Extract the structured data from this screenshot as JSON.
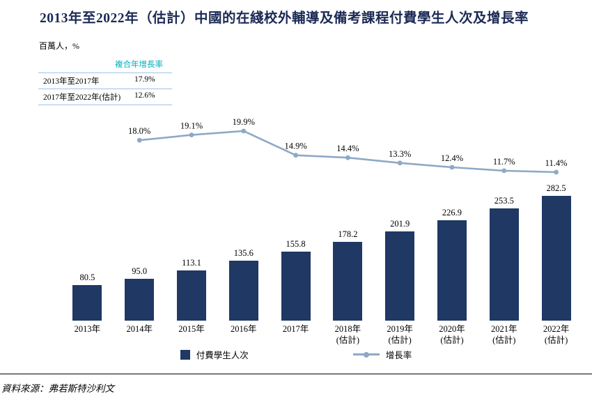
{
  "title": "2013年至2022年（估計）中國的在綫校外輔導及備考課程付費學生人次及增長率",
  "units_label": "百萬人，%",
  "cagr_table": {
    "header": "複合年增長率",
    "rows": [
      {
        "label": "2013年至2017年",
        "value": "17.9%"
      },
      {
        "label": "2017年至2022年(估計)",
        "value": "12.6%"
      }
    ]
  },
  "chart_data": {
    "type": "bar+line",
    "categories": [
      "2013年",
      "2014年",
      "2015年",
      "2016年",
      "2017年",
      "2018年",
      "2019年",
      "2020年",
      "2021年",
      "2022年"
    ],
    "category_sublabels": [
      "",
      "",
      "",
      "",
      "",
      "(估計)",
      "(估計)",
      "(估計)",
      "(估計)",
      "(估計)"
    ],
    "series": [
      {
        "name": "付費學生人次",
        "type": "bar",
        "values": [
          80.5,
          95.0,
          113.1,
          135.6,
          155.8,
          178.2,
          201.9,
          226.9,
          253.5,
          282.5
        ],
        "labels": [
          "80.5",
          "95.0",
          "113.1",
          "135.6",
          "155.8",
          "178.2",
          "201.9",
          "226.9",
          "253.5",
          "282.5"
        ],
        "color": "#1F3864"
      },
      {
        "name": "增長率",
        "type": "line",
        "values": [
          null,
          18.0,
          19.1,
          19.9,
          14.9,
          14.4,
          13.3,
          12.4,
          11.7,
          11.4
        ],
        "labels": [
          "",
          "18.0%",
          "19.1%",
          "19.9%",
          "14.9%",
          "14.4%",
          "13.3%",
          "12.4%",
          "11.7%",
          "11.4%"
        ],
        "color": "#8EA9C6"
      }
    ],
    "title": "2013年至2022年（估計）中國的在綫校外輔導及備考課程付費學生人次及增長率",
    "ylabel": "百萬人，%",
    "grid": false,
    "legend_position": "bottom"
  },
  "legend": {
    "bar_label": "付費學生人次",
    "line_label": "增長率"
  },
  "source": "資料來源：弗若斯特沙利文",
  "colors": {
    "bar": "#1F3864",
    "line": "#8EA9C6",
    "accent_teal": "#00AEBD",
    "table_border": "#9DC3E6",
    "title": "#1B2A55"
  }
}
